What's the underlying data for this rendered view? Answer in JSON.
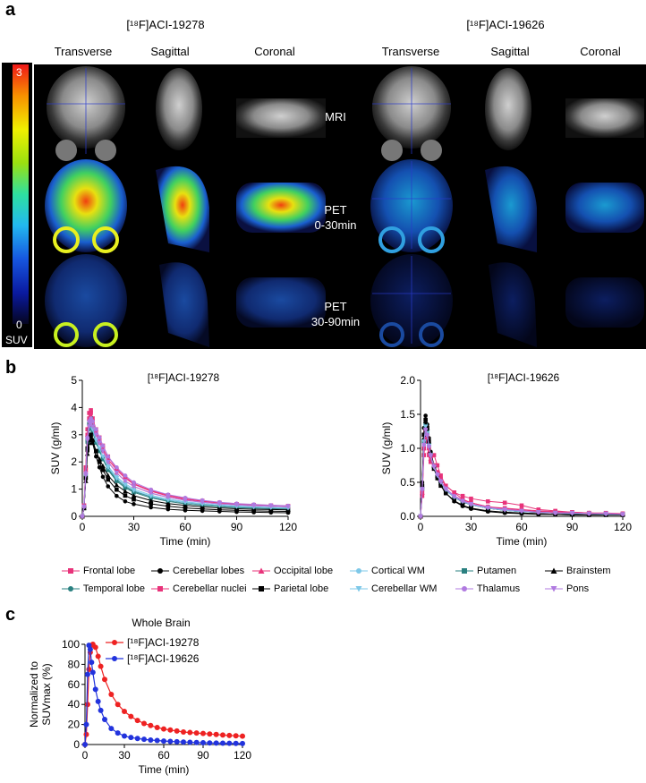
{
  "panel_a": {
    "letter": "a",
    "tracer_left": "[¹⁸F]ACI-19278",
    "tracer_right": "[¹⁸F]ACI-19626",
    "views": [
      "Transverse",
      "Sagittal",
      "Coronal",
      "Transverse",
      "Sagittal",
      "Coronal"
    ],
    "row_labels": [
      "MRI",
      "PET\n0-30min",
      "PET\n30-90min"
    ],
    "colorbar": {
      "max": "3",
      "min": "0",
      "unit": "SUV"
    }
  },
  "panel_b": {
    "letter": "b",
    "legend": [
      {
        "name": "Frontal lobe",
        "color": "#e8337a",
        "marker": "square"
      },
      {
        "name": "Cerebellar lobes",
        "color": "#000000",
        "marker": "circle"
      },
      {
        "name": "Occipital lobe",
        "color": "#e8337a",
        "marker": "triangle"
      },
      {
        "name": "Cortical WM",
        "color": "#7ec8e8",
        "marker": "circle"
      },
      {
        "name": "Putamen",
        "color": "#2a8080",
        "marker": "square"
      },
      {
        "name": "Brainstem",
        "color": "#000000",
        "marker": "triangle"
      },
      {
        "name": "Temporal lobe",
        "color": "#2a8080",
        "marker": "circle"
      },
      {
        "name": "Cerebellar nuclei",
        "color": "#e8337a",
        "marker": "square"
      },
      {
        "name": "Parietal lobe",
        "color": "#000000",
        "marker": "square"
      },
      {
        "name": "Cerebellar WM",
        "color": "#7ec8e8",
        "marker": "triangle-down"
      },
      {
        "name": "Thalamus",
        "color": "#b07ae0",
        "marker": "circle"
      },
      {
        "name": "Pons",
        "color": "#b07ae0",
        "marker": "triangle-down"
      }
    ]
  },
  "panel_c": {
    "letter": "c"
  },
  "chart_data": [
    {
      "type": "line",
      "title": "[¹⁸F]ACI-19278",
      "xlabel": "Time (min)",
      "ylabel": "SUV (g/ml)",
      "xlim": [
        0,
        120
      ],
      "ylim": [
        0,
        5
      ],
      "xticks": [
        "0",
        "30",
        "60",
        "90",
        "120"
      ],
      "yticks": [
        "0",
        "1",
        "2",
        "3",
        "4",
        "5"
      ],
      "x": [
        0,
        1,
        2,
        3,
        4,
        5,
        6,
        8,
        10,
        12,
        15,
        20,
        25,
        30,
        40,
        50,
        60,
        70,
        80,
        90,
        100,
        110,
        120
      ],
      "series": [
        {
          "name": "Frontal lobe",
          "color": "#e8337a",
          "values": [
            0,
            0.4,
            1.8,
            3.2,
            3.8,
            3.9,
            3.6,
            3.2,
            2.9,
            2.6,
            2.2,
            1.75,
            1.45,
            1.2,
            0.95,
            0.78,
            0.65,
            0.57,
            0.5,
            0.45,
            0.42,
            0.4,
            0.38
          ]
        },
        {
          "name": "Cerebellar lobes",
          "color": "#000000",
          "values": [
            0,
            0.3,
            1.4,
            2.4,
            2.8,
            2.9,
            2.7,
            2.2,
            1.8,
            1.45,
            1.1,
            0.75,
            0.55,
            0.45,
            0.33,
            0.26,
            0.22,
            0.2,
            0.18,
            0.16,
            0.15,
            0.14,
            0.13
          ]
        },
        {
          "name": "Occipital lobe",
          "color": "#e8337a",
          "values": [
            0,
            0.4,
            1.7,
            3.0,
            3.6,
            3.7,
            3.4,
            3.0,
            2.7,
            2.4,
            2.0,
            1.6,
            1.3,
            1.1,
            0.85,
            0.7,
            0.6,
            0.52,
            0.46,
            0.42,
            0.39,
            0.37,
            0.35
          ]
        },
        {
          "name": "Cortical WM",
          "color": "#7ec8e8",
          "values": [
            0,
            0.35,
            1.6,
            2.9,
            3.4,
            3.5,
            3.2,
            2.8,
            2.5,
            2.2,
            1.85,
            1.45,
            1.2,
            1.0,
            0.78,
            0.63,
            0.54,
            0.47,
            0.42,
            0.38,
            0.35,
            0.33,
            0.31
          ]
        },
        {
          "name": "Putamen",
          "color": "#2a8080",
          "values": [
            0,
            0.35,
            1.5,
            2.8,
            3.4,
            3.6,
            3.3,
            2.8,
            2.4,
            2.1,
            1.7,
            1.3,
            1.05,
            0.88,
            0.68,
            0.55,
            0.46,
            0.4,
            0.36,
            0.32,
            0.3,
            0.28,
            0.27
          ]
        },
        {
          "name": "Brainstem",
          "color": "#000000",
          "values": [
            0,
            0.3,
            1.3,
            2.3,
            2.7,
            2.8,
            2.7,
            2.4,
            2.1,
            1.85,
            1.5,
            1.15,
            0.92,
            0.76,
            0.58,
            0.47,
            0.4,
            0.35,
            0.31,
            0.28,
            0.26,
            0.25,
            0.24
          ]
        },
        {
          "name": "Temporal lobe",
          "color": "#2a8080",
          "values": [
            0,
            0.35,
            1.5,
            2.7,
            3.2,
            3.3,
            3.1,
            2.7,
            2.4,
            2.1,
            1.75,
            1.35,
            1.1,
            0.92,
            0.72,
            0.59,
            0.5,
            0.44,
            0.39,
            0.35,
            0.33,
            0.31,
            0.3
          ]
        },
        {
          "name": "Cerebellar nuclei",
          "color": "#e8337a",
          "values": [
            0,
            0.4,
            1.7,
            3.0,
            3.6,
            3.8,
            3.5,
            3.1,
            2.8,
            2.5,
            2.1,
            1.7,
            1.4,
            1.18,
            0.92,
            0.75,
            0.63,
            0.55,
            0.49,
            0.44,
            0.41,
            0.39,
            0.37
          ]
        },
        {
          "name": "Parietal lobe",
          "color": "#000000",
          "values": [
            0,
            0.3,
            1.4,
            2.5,
            2.9,
            3.0,
            2.8,
            2.4,
            2.0,
            1.7,
            1.35,
            0.98,
            0.76,
            0.62,
            0.46,
            0.37,
            0.31,
            0.27,
            0.24,
            0.22,
            0.2,
            0.19,
            0.18
          ]
        },
        {
          "name": "Cerebellar WM",
          "color": "#7ec8e8",
          "values": [
            0,
            0.35,
            1.5,
            2.8,
            3.3,
            3.4,
            3.2,
            2.8,
            2.5,
            2.2,
            1.8,
            1.4,
            1.15,
            0.95,
            0.74,
            0.6,
            0.51,
            0.45,
            0.4,
            0.36,
            0.34,
            0.32,
            0.3
          ]
        },
        {
          "name": "Thalamus",
          "color": "#b07ae0",
          "values": [
            0,
            0.35,
            1.6,
            2.9,
            3.5,
            3.6,
            3.5,
            3.2,
            2.9,
            2.6,
            2.2,
            1.8,
            1.5,
            1.25,
            0.98,
            0.8,
            0.68,
            0.59,
            0.52,
            0.47,
            0.44,
            0.41,
            0.39
          ]
        },
        {
          "name": "Pons",
          "color": "#b07ae0",
          "values": [
            0,
            0.35,
            1.5,
            2.8,
            3.3,
            3.4,
            3.3,
            3.0,
            2.7,
            2.4,
            2.0,
            1.6,
            1.3,
            1.1,
            0.86,
            0.7,
            0.59,
            0.52,
            0.46,
            0.42,
            0.39,
            0.37,
            0.35
          ]
        }
      ]
    },
    {
      "type": "line",
      "title": "[¹⁸F]ACI-19626",
      "xlabel": "Time (min)",
      "ylabel": "SUV (g/ml)",
      "xlim": [
        0,
        120
      ],
      "ylim": [
        0,
        2.0
      ],
      "xticks": [
        "0",
        "30",
        "60",
        "90",
        "120"
      ],
      "yticks": [
        "0.0",
        "0.5",
        "1.0",
        "1.5",
        "2.0"
      ],
      "x": [
        0,
        1,
        2,
        3,
        4,
        5,
        6,
        8,
        10,
        12,
        15,
        20,
        25,
        30,
        40,
        50,
        60,
        70,
        80,
        90,
        100,
        110,
        120
      ],
      "series": [
        {
          "name": "Frontal lobe",
          "color": "#e8337a",
          "values": [
            0,
            0.3,
            0.9,
            1.15,
            1.1,
            0.9,
            0.8,
            0.9,
            0.75,
            0.6,
            0.45,
            0.35,
            0.25,
            0.2,
            0.14,
            0.12,
            0.1,
            0.08,
            0.07,
            0.06,
            0.05,
            0.05,
            0.04
          ]
        },
        {
          "name": "Cerebellar lobes",
          "color": "#000000",
          "values": [
            0,
            0.5,
            1.3,
            1.48,
            1.35,
            1.15,
            0.95,
            0.72,
            0.58,
            0.46,
            0.34,
            0.22,
            0.15,
            0.11,
            0.07,
            0.05,
            0.04,
            0.03,
            0.03,
            0.02,
            0.02,
            0.02,
            0.02
          ]
        },
        {
          "name": "Occipital lobe",
          "color": "#e8337a",
          "values": [
            0,
            0.35,
            1.0,
            1.2,
            1.1,
            0.95,
            0.85,
            0.7,
            0.6,
            0.5,
            0.4,
            0.3,
            0.24,
            0.2,
            0.14,
            0.11,
            0.09,
            0.07,
            0.06,
            0.05,
            0.05,
            0.04,
            0.04
          ]
        },
        {
          "name": "Cortical WM",
          "color": "#7ec8e8",
          "values": [
            0,
            0.4,
            1.1,
            1.3,
            1.2,
            1.02,
            0.88,
            0.7,
            0.58,
            0.48,
            0.38,
            0.28,
            0.21,
            0.17,
            0.12,
            0.09,
            0.07,
            0.06,
            0.05,
            0.04,
            0.04,
            0.03,
            0.03
          ]
        },
        {
          "name": "Putamen",
          "color": "#2a8080",
          "values": [
            0,
            0.4,
            1.1,
            1.35,
            1.25,
            1.05,
            0.9,
            0.72,
            0.6,
            0.5,
            0.39,
            0.28,
            0.21,
            0.17,
            0.12,
            0.09,
            0.07,
            0.06,
            0.05,
            0.04,
            0.04,
            0.03,
            0.03
          ]
        },
        {
          "name": "Brainstem",
          "color": "#000000",
          "values": [
            0,
            0.45,
            1.15,
            1.4,
            1.3,
            1.1,
            0.95,
            0.75,
            0.62,
            0.52,
            0.4,
            0.29,
            0.22,
            0.17,
            0.12,
            0.09,
            0.07,
            0.06,
            0.05,
            0.04,
            0.04,
            0.03,
            0.03
          ]
        },
        {
          "name": "Temporal lobe",
          "color": "#2a8080",
          "values": [
            0,
            0.4,
            1.1,
            1.3,
            1.22,
            1.05,
            0.9,
            0.72,
            0.6,
            0.5,
            0.39,
            0.28,
            0.22,
            0.17,
            0.12,
            0.09,
            0.07,
            0.06,
            0.05,
            0.04,
            0.04,
            0.03,
            0.03
          ]
        },
        {
          "name": "Cerebellar nuclei",
          "color": "#e8337a",
          "values": [
            0,
            0.35,
            1.0,
            1.25,
            1.15,
            1.0,
            0.88,
            0.75,
            0.65,
            0.55,
            0.45,
            0.35,
            0.3,
            0.26,
            0.22,
            0.2,
            0.16,
            0.1,
            0.08,
            0.06,
            0.05,
            0.04,
            0.04
          ]
        },
        {
          "name": "Parietal lobe",
          "color": "#000000",
          "values": [
            0,
            0.45,
            1.2,
            1.42,
            1.3,
            1.1,
            0.92,
            0.7,
            0.56,
            0.45,
            0.34,
            0.23,
            0.16,
            0.12,
            0.08,
            0.06,
            0.05,
            0.04,
            0.03,
            0.03,
            0.02,
            0.02,
            0.02
          ]
        },
        {
          "name": "Cerebellar WM",
          "color": "#7ec8e8",
          "values": [
            0,
            0.4,
            1.1,
            1.32,
            1.22,
            1.04,
            0.9,
            0.72,
            0.6,
            0.5,
            0.39,
            0.28,
            0.22,
            0.17,
            0.12,
            0.09,
            0.07,
            0.06,
            0.05,
            0.04,
            0.04,
            0.03,
            0.03
          ]
        },
        {
          "name": "Thalamus",
          "color": "#b07ae0",
          "values": [
            0,
            0.4,
            1.05,
            1.28,
            1.2,
            1.03,
            0.9,
            0.74,
            0.62,
            0.52,
            0.41,
            0.3,
            0.23,
            0.18,
            0.13,
            0.1,
            0.08,
            0.06,
            0.05,
            0.05,
            0.04,
            0.04,
            0.03
          ]
        },
        {
          "name": "Pons",
          "color": "#b07ae0",
          "values": [
            0,
            0.4,
            1.05,
            1.27,
            1.18,
            1.02,
            0.89,
            0.73,
            0.61,
            0.51,
            0.4,
            0.29,
            0.22,
            0.18,
            0.13,
            0.1,
            0.08,
            0.06,
            0.05,
            0.05,
            0.04,
            0.04,
            0.03
          ]
        }
      ]
    },
    {
      "type": "line",
      "title": "Whole Brain",
      "xlabel": "Time (min)",
      "ylabel": "Normalized to\nSUVmax (%)",
      "xlim": [
        0,
        120
      ],
      "ylim": [
        0,
        100
      ],
      "xticks": [
        "0",
        "30",
        "60",
        "90",
        "120"
      ],
      "yticks": [
        "0",
        "20",
        "40",
        "60",
        "80",
        "100"
      ],
      "x": [
        0,
        1,
        2,
        3,
        4,
        5,
        6,
        8,
        10,
        12,
        15,
        20,
        25,
        30,
        35,
        40,
        45,
        50,
        55,
        60,
        65,
        70,
        75,
        80,
        85,
        90,
        95,
        100,
        105,
        110,
        115,
        120
      ],
      "series": [
        {
          "name": "[¹⁸F]ACI-19278",
          "color": "#ee2222",
          "values": [
            0,
            10,
            40,
            75,
            92,
            99,
            100,
            97,
            88,
            78,
            65,
            50,
            40,
            33,
            28,
            24,
            21,
            19,
            17,
            15.5,
            14.5,
            13.5,
            12.5,
            12,
            11.5,
            11,
            10.5,
            10,
            9.5,
            9,
            8.7,
            8.4
          ]
        },
        {
          "name": "[¹⁸F]ACI-19626",
          "color": "#2233dd",
          "values": [
            0,
            20,
            70,
            99,
            95,
            82,
            72,
            55,
            43,
            34,
            25,
            16,
            11.5,
            8.5,
            7,
            6,
            5.2,
            4.5,
            4,
            3.5,
            3.1,
            2.8,
            2.5,
            2.2,
            2,
            1.8,
            1.6,
            1.4,
            1.3,
            1.2,
            1.1,
            1
          ]
        }
      ]
    }
  ]
}
